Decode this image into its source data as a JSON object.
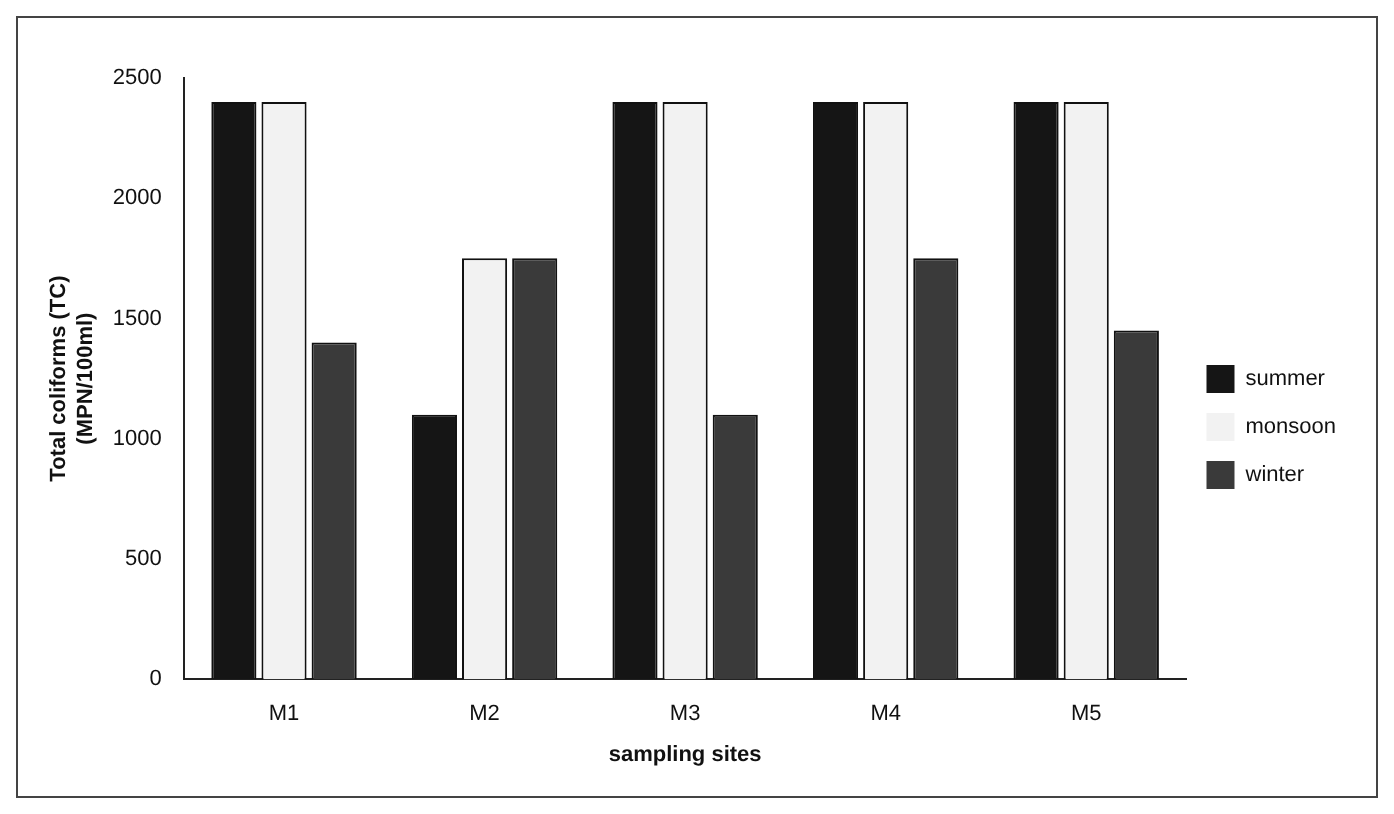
{
  "chart_data": {
    "type": "bar",
    "xlabel": "sampling sites",
    "ylabel": "Total coliforms (TC)\n(MPN/100ml)",
    "categories": [
      "M1",
      "M2",
      "M3",
      "M4",
      "M5"
    ],
    "series": [
      {
        "name": "summer",
        "color": "#151515",
        "values": [
          2400,
          1100,
          2400,
          2400,
          2400
        ]
      },
      {
        "name": "monsoon",
        "color": "#f2f2f2",
        "values": [
          2400,
          1750,
          2400,
          2400,
          2400
        ]
      },
      {
        "name": "winter",
        "color": "#3a3a3a",
        "values": [
          1400,
          1750,
          1100,
          1750,
          1450
        ]
      }
    ],
    "ylim": [
      0,
      2500
    ],
    "yticks": [
      0,
      500,
      1000,
      1500,
      2000,
      2500
    ],
    "grid": false,
    "legend": "right"
  }
}
